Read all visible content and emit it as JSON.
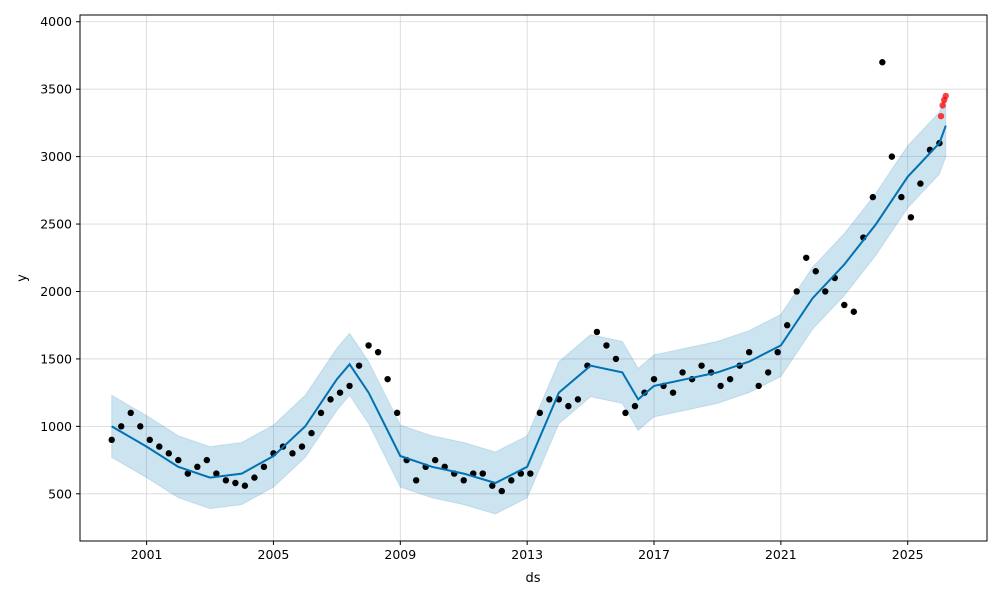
{
  "chart_data": {
    "type": "scatter",
    "xlabel": "ds",
    "ylabel": "y",
    "x_ticks": [
      "2001",
      "2005",
      "2009",
      "2013",
      "2017",
      "2021",
      "2025"
    ],
    "y_ticks": [
      "500",
      "1000",
      "1500",
      "2000",
      "2500",
      "3000",
      "3500",
      "4000"
    ],
    "xlim": [
      1998.9,
      2027.5
    ],
    "ylim": [
      150,
      4050
    ],
    "grid": true,
    "colors": {
      "observed": "#000000",
      "forecast_points": "#ff0000",
      "trend_line": "#0072B2",
      "interval_band": "#0072B2"
    },
    "series": [
      {
        "role": "observed",
        "x": [
          1999.9,
          2000.2,
          2000.5,
          2000.8,
          2001.1,
          2001.4,
          2001.7,
          2002.0,
          2002.3,
          2002.6,
          2002.9,
          2003.2,
          2003.5,
          2003.8,
          2004.1,
          2004.4,
          2004.7,
          2005.0,
          2005.3,
          2005.6,
          2005.9,
          2006.2,
          2006.5,
          2006.8,
          2007.1,
          2007.4,
          2007.7,
          2008.0,
          2008.3,
          2008.6,
          2008.9,
          2009.2,
          2009.5,
          2009.8,
          2010.1,
          2010.4,
          2010.7,
          2011.0,
          2011.3,
          2011.6,
          2011.9,
          2012.2,
          2012.5,
          2012.8,
          2013.1,
          2013.4,
          2013.7,
          2014.0,
          2014.3,
          2014.6,
          2014.9,
          2015.2,
          2015.5,
          2015.8,
          2016.1,
          2016.4,
          2016.7,
          2017.0,
          2017.3,
          2017.6,
          2017.9,
          2018.2,
          2018.5,
          2018.8,
          2019.1,
          2019.4,
          2019.7,
          2020.0,
          2020.3,
          2020.6,
          2020.9,
          2021.2,
          2021.5,
          2021.8,
          2022.1,
          2022.4,
          2022.7,
          2023.0,
          2023.3,
          2023.6,
          2023.9,
          2024.2,
          2024.5,
          2024.8,
          2025.1,
          2025.4,
          2025.7,
          2026.0
        ],
        "y": [
          900,
          1000,
          1100,
          1000,
          900,
          850,
          800,
          750,
          650,
          700,
          750,
          650,
          600,
          580,
          560,
          620,
          700,
          800,
          850,
          800,
          850,
          950,
          1100,
          1200,
          1250,
          1300,
          1450,
          1600,
          1550,
          1350,
          1100,
          750,
          600,
          700,
          750,
          700,
          650,
          600,
          650,
          650,
          560,
          520,
          600,
          650,
          650,
          1100,
          1200,
          1200,
          1150,
          1200,
          1450,
          1700,
          1600,
          1500,
          1100,
          1150,
          1250,
          1350,
          1300,
          1250,
          1400,
          1350,
          1450,
          1400,
          1300,
          1350,
          1450,
          1550,
          1300,
          1400,
          1550,
          1750,
          2000,
          2250,
          2150,
          2000,
          2100,
          1900,
          1850,
          2400,
          2700,
          3700,
          3000,
          2700,
          2550,
          2800,
          3050,
          3100
        ]
      },
      {
        "role": "forecast_points",
        "x": [
          2026.05,
          2026.1,
          2026.15,
          2026.2
        ],
        "y": [
          3300,
          3380,
          3420,
          3450
        ]
      }
    ],
    "trend": {
      "x": [
        1999.9,
        2001.0,
        2002.0,
        2003.0,
        2004.0,
        2005.0,
        2006.0,
        2007.0,
        2007.4,
        2008.0,
        2009.0,
        2010.0,
        2011.0,
        2012.0,
        2013.0,
        2014.0,
        2015.0,
        2016.0,
        2016.5,
        2017.0,
        2018.0,
        2019.0,
        2020.0,
        2021.0,
        2022.0,
        2023.0,
        2024.0,
        2025.0,
        2026.0,
        2026.2
      ],
      "y": [
        1000,
        850,
        700,
        620,
        650,
        780,
        1000,
        1350,
        1460,
        1250,
        780,
        700,
        650,
        580,
        700,
        1250,
        1450,
        1400,
        1200,
        1300,
        1350,
        1400,
        1480,
        1600,
        1950,
        2200,
        2500,
        2850,
        3100,
        3230
      ]
    },
    "interval_halfwidth": 230
  }
}
